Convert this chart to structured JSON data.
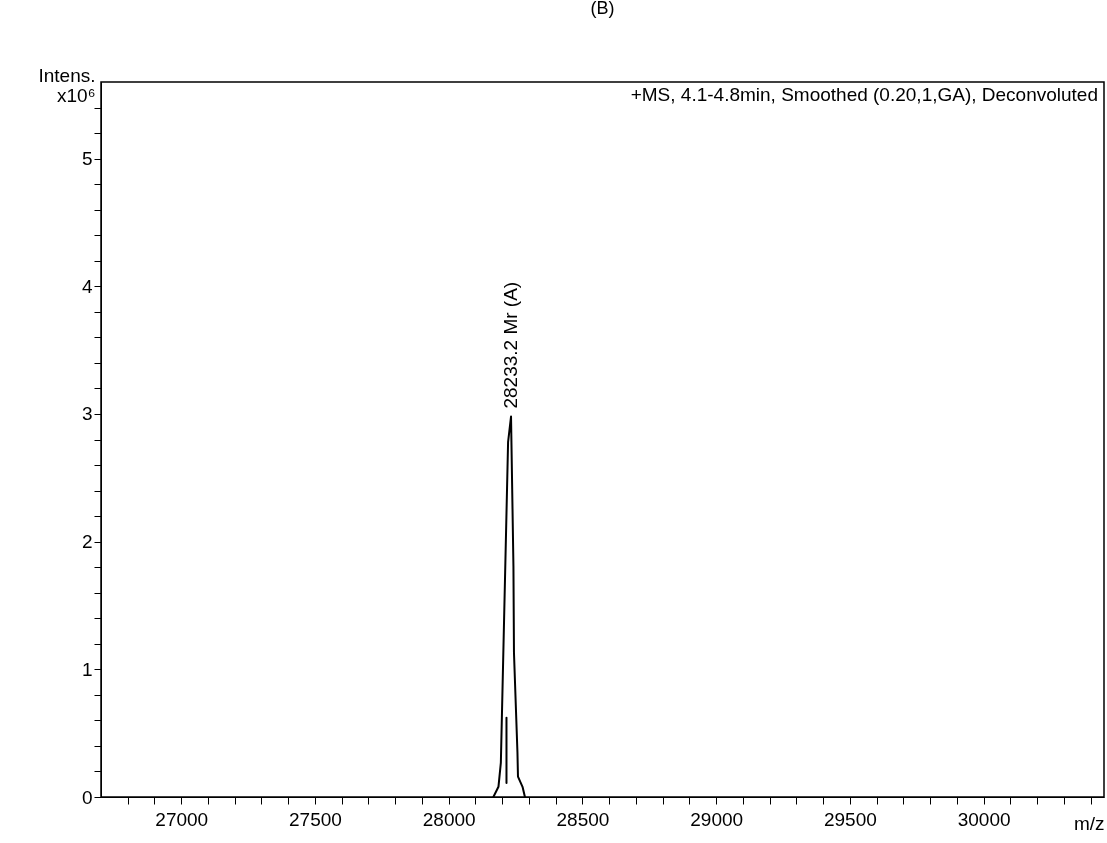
{
  "chart_data": {
    "type": "line",
    "title": "(B)",
    "xlabel": "m/z",
    "ylabel": "Intens. x10⁶",
    "xlim": [
      26700,
      30450
    ],
    "ylim": [
      0,
      5.6
    ],
    "xticks": [
      {
        "value": 26800,
        "label": null
      },
      {
        "value": 26900,
        "label": null
      },
      27000,
      {
        "value": 27100,
        "label": null
      },
      {
        "value": 27200,
        "label": null
      },
      {
        "value": 27300,
        "label": null
      },
      {
        "value": 27400,
        "label": null
      },
      27500,
      {
        "value": 27600,
        "label": null
      },
      {
        "value": 27700,
        "label": null
      },
      {
        "value": 27800,
        "label": null
      },
      {
        "value": 27900,
        "label": null
      },
      28000,
      {
        "value": 28100,
        "label": null
      },
      {
        "value": 28200,
        "label": null
      },
      {
        "value": 28300,
        "label": null
      },
      {
        "value": 28400,
        "label": null
      },
      28500,
      {
        "value": 28600,
        "label": null
      },
      {
        "value": 28700,
        "label": null
      },
      {
        "value": 28800,
        "label": null
      },
      {
        "value": 28900,
        "label": null
      },
      29000,
      {
        "value": 29100,
        "label": null
      },
      {
        "value": 29200,
        "label": null
      },
      {
        "value": 29300,
        "label": null
      },
      {
        "value": 29400,
        "label": null
      },
      29500,
      {
        "value": 29600,
        "label": null
      },
      {
        "value": 29700,
        "label": null
      },
      {
        "value": 29800,
        "label": null
      },
      {
        "value": 29900,
        "label": null
      },
      30000,
      {
        "value": 30100,
        "label": null
      },
      {
        "value": 30200,
        "label": null
      },
      {
        "value": 30300,
        "label": null
      },
      {
        "value": 30400,
        "label": null
      }
    ],
    "yticks": [
      0,
      {
        "value": 0.2,
        "label": null
      },
      {
        "value": 0.4,
        "label": null
      },
      {
        "value": 0.6,
        "label": null
      },
      {
        "value": 0.8,
        "label": null
      },
      1,
      {
        "value": 1.2,
        "label": null
      },
      {
        "value": 1.4,
        "label": null
      },
      {
        "value": 1.6,
        "label": null
      },
      {
        "value": 1.8,
        "label": null
      },
      2,
      {
        "value": 2.2,
        "label": null
      },
      {
        "value": 2.4,
        "label": null
      },
      {
        "value": 2.6,
        "label": null
      },
      {
        "value": 2.8,
        "label": null
      },
      3,
      {
        "value": 3.2,
        "label": null
      },
      {
        "value": 3.4,
        "label": null
      },
      {
        "value": 3.6,
        "label": null
      },
      {
        "value": 3.8,
        "label": null
      },
      4,
      {
        "value": 4.2,
        "label": null
      },
      {
        "value": 4.4,
        "label": null
      },
      {
        "value": 4.6,
        "label": null
      },
      {
        "value": 4.8,
        "label": null
      },
      5,
      {
        "value": 5.2,
        "label": null
      },
      {
        "value": 5.4,
        "label": null
      }
    ],
    "series": [
      {
        "color": "#000000",
        "x": [
          28167,
          28186,
          28195,
          28222,
          28233,
          28242,
          28244,
          28257,
          28259,
          28276,
          28285
        ],
        "values": [
          0,
          0.08,
          0.27,
          2.78,
          2.98,
          1.81,
          1.13,
          0.35,
          0.16,
          0.08,
          0
        ]
      },
      {
        "color": "#000000",
        "x": [
          28216,
          28216
        ],
        "values": [
          0.62,
          0.11
        ]
      }
    ],
    "annotations": [
      "+MS, 4.1-4.8min, Smoothed (0.20,1,GA), Deconvoluted",
      "28233.2  Mr (A)"
    ]
  }
}
